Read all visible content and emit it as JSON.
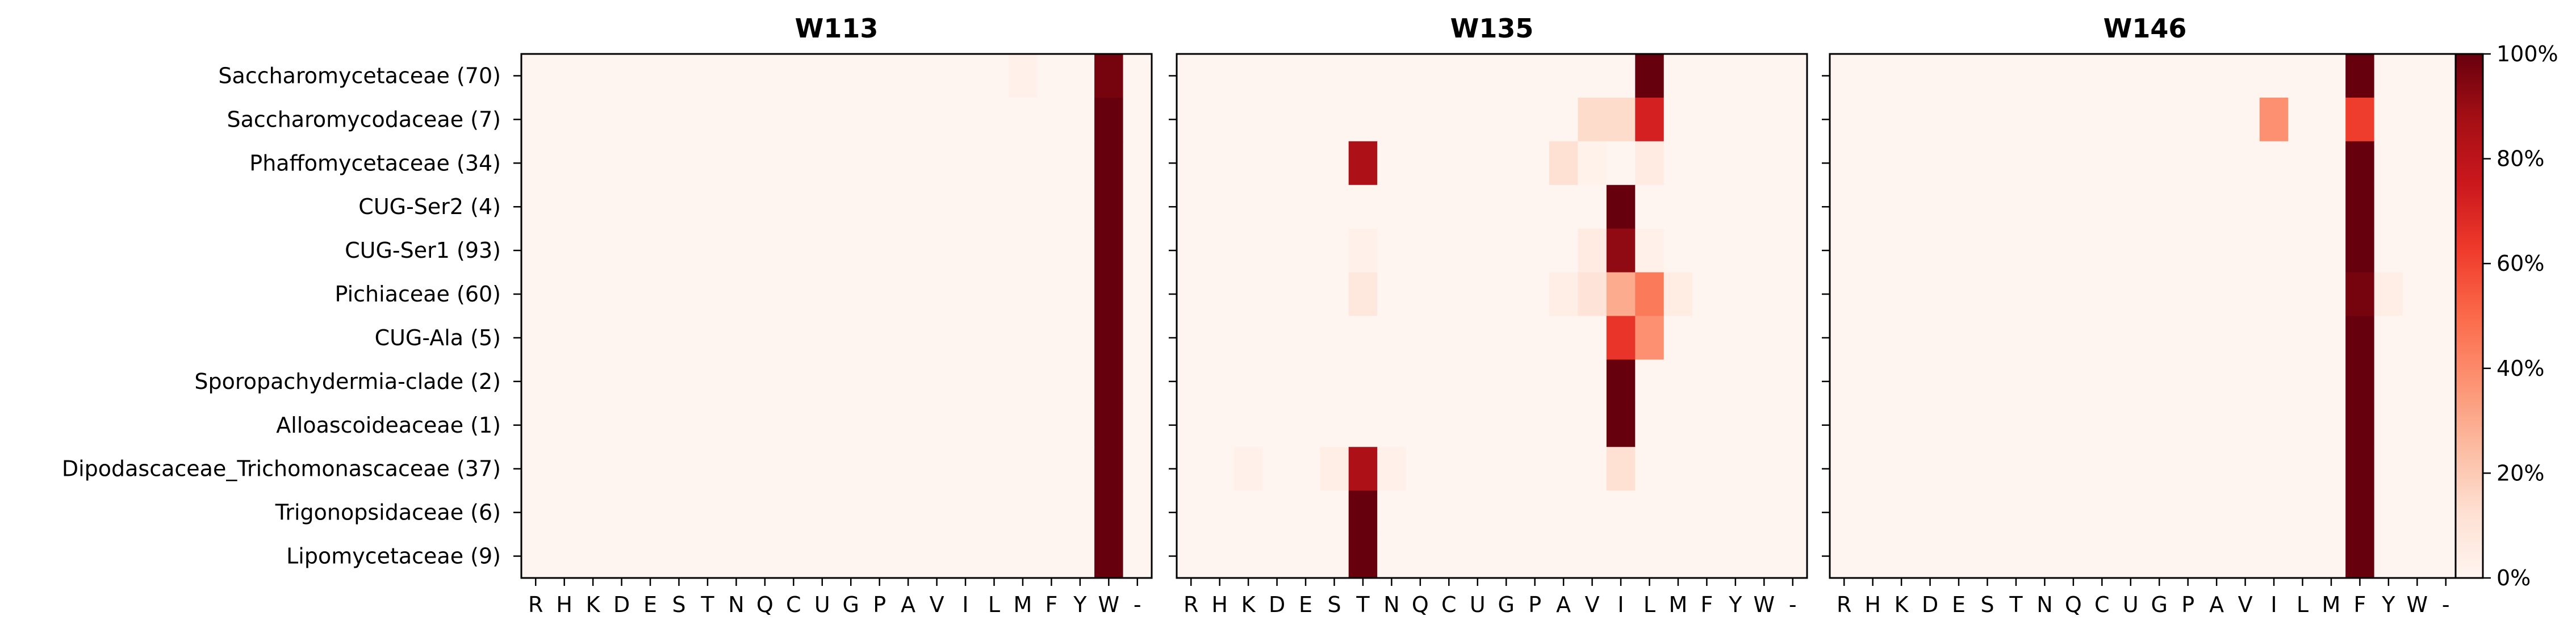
{
  "chart_data": {
    "type": "heatmap",
    "rows": [
      "Saccharomycetaceae (70)",
      "Saccharomycodaceae (7)",
      "Phaffomycetaceae (34)",
      "CUG-Ser2 (4)",
      "CUG-Ser1 (93)",
      "Pichiaceae (60)",
      "CUG-Ala (5)",
      "Sporopachydermia-clade (2)",
      "Alloascoideaceae (1)",
      "Dipodascaceae_Trichomonascaceae (37)",
      "Trigonopsidaceae (6)",
      "Lipomycetaceae (9)"
    ],
    "columns": [
      "R",
      "H",
      "K",
      "D",
      "E",
      "S",
      "T",
      "N",
      "Q",
      "C",
      "U",
      "G",
      "P",
      "A",
      "V",
      "I",
      "L",
      "M",
      "F",
      "Y",
      "W",
      "-"
    ],
    "colorbar": {
      "min": 0,
      "max": 100,
      "ticks": [
        "0%",
        "20%",
        "40%",
        "60%",
        "80%",
        "100%"
      ]
    },
    "panels": [
      {
        "title": "W113",
        "dominant_column": "W",
        "dominant_values": [
          97,
          100,
          100,
          100,
          100,
          100,
          100,
          100,
          100,
          100,
          100,
          100
        ],
        "extra": [
          {
            "row": 0,
            "col": "M",
            "value": 3
          }
        ]
      },
      {
        "title": "W135",
        "dominant_column": null,
        "dominant_values": [],
        "extra": [
          {
            "row": 0,
            "col": "L",
            "value": 100
          },
          {
            "row": 1,
            "col": "V",
            "value": 14
          },
          {
            "row": 1,
            "col": "I",
            "value": 14
          },
          {
            "row": 1,
            "col": "L",
            "value": 72
          },
          {
            "row": 2,
            "col": "T",
            "value": 85
          },
          {
            "row": 2,
            "col": "A",
            "value": 12
          },
          {
            "row": 2,
            "col": "V",
            "value": 2
          },
          {
            "row": 2,
            "col": "I",
            "value": 0
          },
          {
            "row": 2,
            "col": "L",
            "value": 6
          },
          {
            "row": 3,
            "col": "I",
            "value": 100
          },
          {
            "row": 4,
            "col": "T",
            "value": 3
          },
          {
            "row": 4,
            "col": "V",
            "value": 6
          },
          {
            "row": 4,
            "col": "I",
            "value": 92
          },
          {
            "row": 4,
            "col": "L",
            "value": 3
          },
          {
            "row": 5,
            "col": "T",
            "value": 8
          },
          {
            "row": 5,
            "col": "A",
            "value": 4
          },
          {
            "row": 5,
            "col": "V",
            "value": 10
          },
          {
            "row": 5,
            "col": "I",
            "value": 30
          },
          {
            "row": 5,
            "col": "L",
            "value": 45
          },
          {
            "row": 5,
            "col": "M",
            "value": 5
          },
          {
            "row": 6,
            "col": "I",
            "value": 65
          },
          {
            "row": 6,
            "col": "L",
            "value": 38
          },
          {
            "row": 7,
            "col": "I",
            "value": 100
          },
          {
            "row": 8,
            "col": "I",
            "value": 100
          },
          {
            "row": 9,
            "col": "K",
            "value": 3
          },
          {
            "row": 9,
            "col": "S",
            "value": 4
          },
          {
            "row": 9,
            "col": "T",
            "value": 85
          },
          {
            "row": 9,
            "col": "N",
            "value": 3
          },
          {
            "row": 9,
            "col": "I",
            "value": 12
          },
          {
            "row": 10,
            "col": "T",
            "value": 100
          },
          {
            "row": 11,
            "col": "T",
            "value": 100
          }
        ]
      },
      {
        "title": "W146",
        "dominant_column": "F",
        "dominant_values": [
          100,
          62,
          100,
          100,
          100,
          97,
          100,
          100,
          100,
          100,
          100,
          100
        ],
        "extra": [
          {
            "row": 1,
            "col": "I",
            "value": 38
          },
          {
            "row": 5,
            "col": "Y",
            "value": 4
          }
        ]
      }
    ]
  }
}
